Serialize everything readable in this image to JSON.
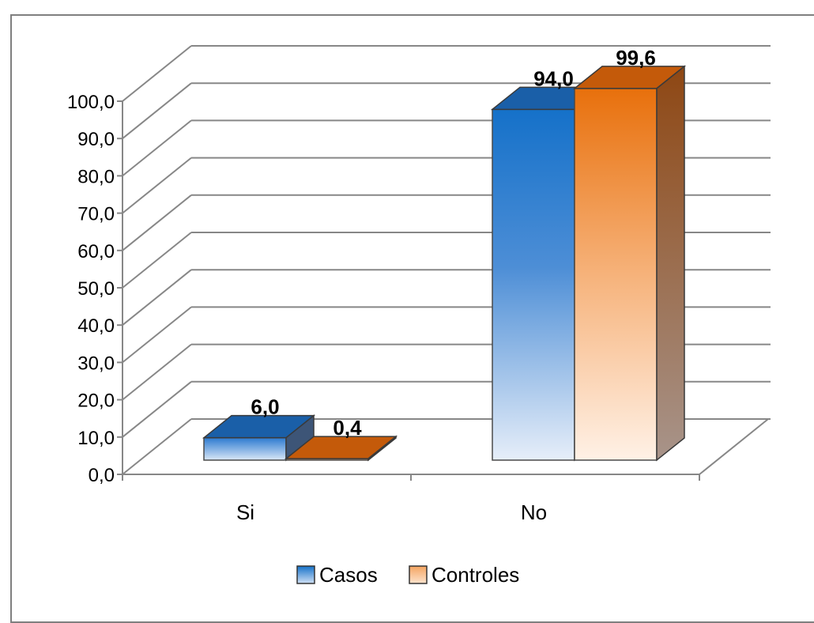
{
  "chart_data": {
    "type": "bar",
    "style": "3d-clustered-column",
    "categories": [
      "Si",
      "No"
    ],
    "series": [
      {
        "name": "Casos",
        "values": [
          6.0,
          94.0
        ],
        "color": "#1f6fc4",
        "color_light": "#dce8f8",
        "color_top": "#1a5fa8",
        "color_side": "#3d5577"
      },
      {
        "name": "Controles",
        "values": [
          0.4,
          99.6
        ],
        "color": "#e8720f",
        "color_light": "#fff0e4",
        "color_top": "#c45a0a",
        "color_side": "#9a4a10"
      }
    ],
    "data_labels": [
      [
        "6,0",
        "94,0"
      ],
      [
        "0,4",
        "99,6"
      ]
    ],
    "yticks": [
      "0,0",
      "10,0",
      "20,0",
      "30,0",
      "40,0",
      "50,0",
      "60,0",
      "70,0",
      "80,0",
      "90,0",
      "100,0"
    ],
    "ylim": [
      0,
      100
    ],
    "grid": true,
    "legend": "bottom",
    "title": "",
    "xlabel": "",
    "ylabel": ""
  }
}
